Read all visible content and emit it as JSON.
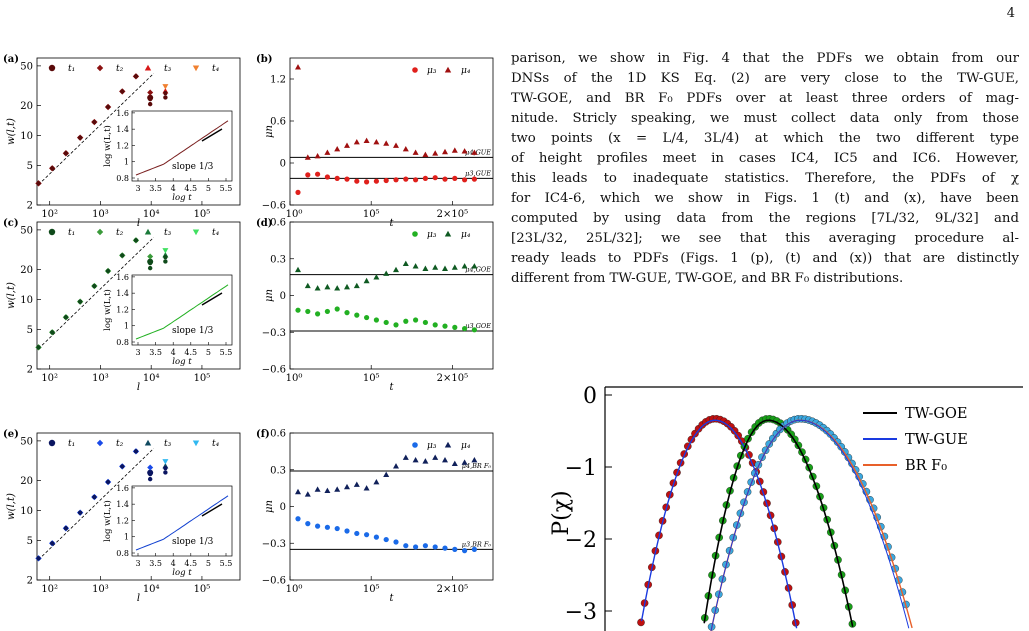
{
  "page_number": "4",
  "text_lines": [
    "parison, we show in Fig. 4 that the PDFs we obtain from our",
    "DNSs of the 1D KS Eq. (2) are very close to the TW-GUE,",
    "TW-GOE, and BR F₀ PDFs over at least three orders of mag-",
    "nitude. Stricly speaking, we must collect data only from those",
    "two points (x = L/4, 3L/4) at which the two different type",
    "of height profiles meet in cases IC4, IC5 and IC6. However,",
    "this leads to inadequate statistics. Therefore, the PDFs of χ",
    "for IC4-6, which we show in Figs. 1 (t) and (x), have been",
    "computed by using data from the regions [7L/32, 9L/32] and",
    "[23L/32, 25L/32]; we see that this averaging procedure al-",
    "ready leads to PDFs (Figs. 1 (p), (t) and (x)) that are distinctly",
    "different from TW-GUE, TW-GOE, and BR F₀ distributions."
  ],
  "colors": {
    "red": "#e0201c",
    "darkred": "#8b1010",
    "green": "#22b022",
    "darkgreen": "#0f5a22",
    "blue": "#1558e8",
    "lightblue": "#3aa8f0",
    "navy": "#10205a",
    "orange": "#f08030",
    "black": "#000000"
  },
  "panels_w": [
    {
      "letter": "(a)",
      "legend": [
        "t₁",
        "t₂",
        "t₃",
        "t₄"
      ],
      "colors": [
        "#5a0a0a",
        "#8b1010",
        "#d81818",
        "#f08030"
      ],
      "curve": "#7a2020"
    },
    {
      "letter": "(c)",
      "legend": [
        "t₁",
        "t₂",
        "t₃",
        "t₄"
      ],
      "colors": [
        "#0f4a1a",
        "#3a9a3a",
        "#1a7a3a",
        "#40e060"
      ],
      "curve": "#22b022"
    },
    {
      "letter": "(e)",
      "legend": [
        "t₁",
        "t₂",
        "t₃",
        "t₄"
      ],
      "colors": [
        "#0a1560",
        "#1a4ae8",
        "#104a60",
        "#30b8f0"
      ],
      "curve": "#1040d0"
    }
  ],
  "w_common": {
    "ylabel": "w(l,t)",
    "xlabel": "l",
    "yticks": [
      "2",
      "5",
      "10",
      "20",
      "50"
    ],
    "xticks": [
      "10²",
      "10³",
      "10⁴",
      "10⁵"
    ],
    "inset_ylabel": "log w(L,t)",
    "inset_xlabel": "log t",
    "inset_yticks": [
      "0.8",
      "1",
      "1.2",
      "1.4",
      "1.6"
    ],
    "inset_xticks": [
      "3",
      "3.5",
      "4",
      "4.5",
      "5",
      "5.5"
    ],
    "slope_label": "slope 1/3"
  },
  "panels_mu": [
    {
      "letter": "(b)",
      "legend": [
        "μ₃",
        "μ₄"
      ],
      "colors": [
        "#e0201c",
        "#a01010"
      ],
      "yticks": [
        "1.2",
        "0.6",
        "0",
        "−0.6"
      ],
      "ref4": "μ4,GUE",
      "ref3": "μ3,GUE"
    },
    {
      "letter": "(d)",
      "legend": [
        "μ₃",
        "μ₄"
      ],
      "colors": [
        "#22b022",
        "#0f5a22"
      ],
      "yticks": [
        "0.6",
        "0.3",
        "0",
        "−0.3",
        "−0.6"
      ],
      "ref4": "μ4,GOE",
      "ref3": "μ3,GOE"
    },
    {
      "letter": "(f)",
      "legend": [
        "μ₃",
        "μ₄"
      ],
      "colors": [
        "#1a6ae8",
        "#10205a"
      ],
      "yticks": [
        "0.6",
        "0.3",
        "0",
        "−0.3",
        "−0.6"
      ],
      "ref4": "μ4,BR F₀",
      "ref3": "μ3,BR F₀"
    }
  ],
  "mu_common": {
    "ylabel": "μn",
    "xlabel": "t",
    "xticks": [
      "10⁰",
      "10⁵",
      "2×10⁵"
    ]
  },
  "pdf_figure": {
    "ylabel": "P(χ)",
    "yticks": [
      "0",
      "−1",
      "−2",
      "−3"
    ],
    "legend": [
      {
        "name": "TW-GOE",
        "color": "#000000"
      },
      {
        "name": "TW-GUE",
        "color": "#1a3ae0"
      },
      {
        "name": "BR F₀",
        "color": "#e8602a"
      }
    ]
  }
}
